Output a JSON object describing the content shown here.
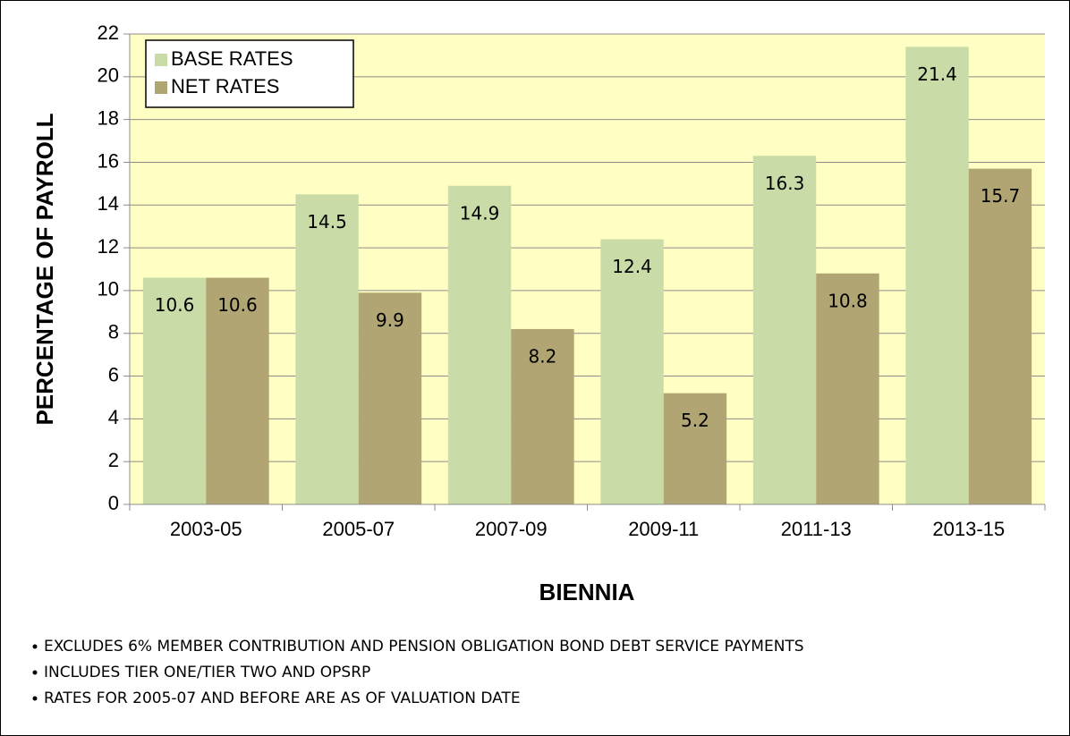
{
  "chart_data": {
    "type": "bar",
    "x_label": "BIENNIA",
    "y_label": "PERCENTAGE OF PAYROLL",
    "categories": [
      "2003-05",
      "2005-07",
      "2007-09",
      "2009-11",
      "2011-13",
      "2013-15"
    ],
    "series": [
      {
        "name": "BASE RATES",
        "color": "#c9dba7",
        "values": [
          10.6,
          14.5,
          14.9,
          12.4,
          16.3,
          21.4
        ]
      },
      {
        "name": "NET RATES",
        "color": "#b1a574",
        "values": [
          10.6,
          9.9,
          8.2,
          5.2,
          10.8,
          15.7
        ]
      }
    ],
    "ylim": [
      0,
      22
    ],
    "yticks": [
      0,
      2,
      4,
      6,
      8,
      10,
      12,
      14,
      16,
      18,
      20,
      22
    ],
    "grid": true,
    "legend": "top-left",
    "background": "#ffffc4",
    "notes": [
      "EXCLUDES 6% MEMBER CONTRIBUTION AND PENSION OBLIGATION BOND DEBT SERVICE PAYMENTS",
      "INCLUDES TIER ONE/TIER TWO AND OPSRP",
      "RATES FOR 2005-07 AND BEFORE ARE AS OF VALUATION DATE"
    ]
  }
}
